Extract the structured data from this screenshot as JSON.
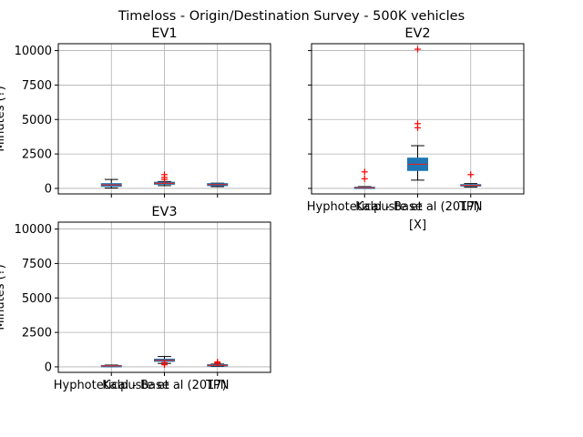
{
  "figure": {
    "suptitle": "Timeloss  - Origin/Destination Survey - 500K vehicles"
  },
  "chart_data": [
    {
      "type": "box",
      "title": "EV1",
      "ylabel": "Minutes (?)",
      "xlabel": "",
      "ylim": [
        -400,
        10500
      ],
      "yticks": [
        0,
        2500,
        5000,
        7500,
        10000
      ],
      "grid": true,
      "show_xticklabels": false,
      "show_yticklabels": true,
      "categories": [
        "Hyphotetical - Base",
        "Kalpuste et al (2017)",
        "TPN"
      ],
      "boxes": [
        {
          "category": "Hyphotetical - Base",
          "whislo": 30,
          "q1": 150,
          "med": 250,
          "q3": 350,
          "whishi": 650,
          "fliers": []
        },
        {
          "category": "Kalpuste et al (2017)",
          "whislo": 200,
          "q1": 300,
          "med": 370,
          "q3": 450,
          "whishi": 500,
          "fliers": [
            650,
            800,
            1000
          ]
        },
        {
          "category": "TPN",
          "whislo": 130,
          "q1": 200,
          "med": 280,
          "q3": 350,
          "whishi": 380,
          "fliers": []
        }
      ]
    },
    {
      "type": "box",
      "title": "EV2",
      "ylabel": "",
      "xlabel": "[X]",
      "ylim": [
        -400,
        10500
      ],
      "yticks": [
        0,
        2500,
        5000,
        7500,
        10000
      ],
      "grid": true,
      "show_xticklabels": true,
      "show_yticklabels": false,
      "categories": [
        "Hyphotetical - Base",
        "Kalpuste et al (2017)",
        "TPN"
      ],
      "boxes": [
        {
          "category": "Hyphotetical - Base",
          "whislo": 0,
          "q1": 20,
          "med": 50,
          "q3": 90,
          "whishi": 130,
          "fliers": [
            700,
            1200
          ]
        },
        {
          "category": "Kalpuste et al (2017)",
          "whislo": 600,
          "q1": 1300,
          "med": 1750,
          "q3": 2200,
          "whishi": 3100,
          "fliers": [
            4400,
            4700,
            10100
          ]
        },
        {
          "category": "TPN",
          "whislo": 100,
          "q1": 170,
          "med": 220,
          "q3": 280,
          "whishi": 350,
          "fliers": [
            1000
          ]
        }
      ]
    },
    {
      "type": "box",
      "title": "EV3",
      "ylabel": "Minutes (?)",
      "xlabel": "",
      "ylim": [
        -400,
        10500
      ],
      "yticks": [
        0,
        2500,
        5000,
        7500,
        10000
      ],
      "grid": true,
      "show_xticklabels": true,
      "show_yticklabels": true,
      "categories": [
        "Hyphotetical - Base",
        "Kalpuste et al (2017)",
        "TPN"
      ],
      "boxes": [
        {
          "category": "Hyphotetical - Base",
          "whislo": 10,
          "q1": 40,
          "med": 70,
          "q3": 100,
          "whishi": 130,
          "fliers": []
        },
        {
          "category": "Kalpuste et al (2017)",
          "whislo": 250,
          "q1": 400,
          "med": 480,
          "q3": 560,
          "whishi": 750,
          "fliers": [
            150,
            300
          ]
        },
        {
          "category": "TPN",
          "whislo": 30,
          "q1": 70,
          "med": 110,
          "q3": 160,
          "whishi": 200,
          "fliers": [
            280,
            350
          ]
        }
      ]
    }
  ],
  "colors": {
    "box_fill": "#1f77b4",
    "box_edge": "#1f77b4",
    "whisker": "#000000",
    "median": "#d62728",
    "flier": "#ff0000",
    "grid": "#b0b0b0"
  }
}
